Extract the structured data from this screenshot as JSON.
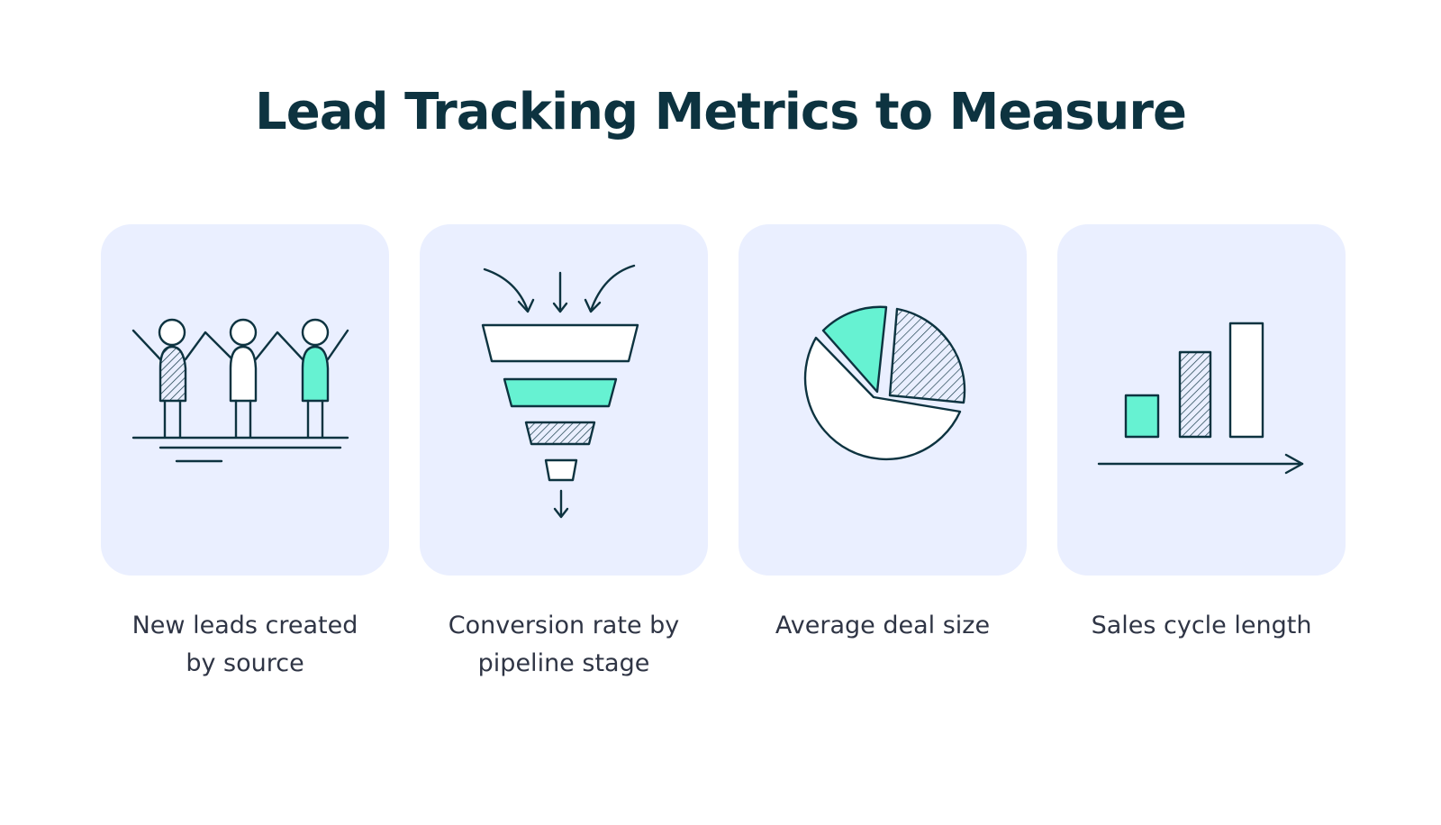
{
  "title": "Lead Tracking Metrics to Measure",
  "colors": {
    "card_background": "#eaefff",
    "accent_mint": "#66f2d2",
    "ink": "#0d3340",
    "caption_text": "#2f3545"
  },
  "metrics": [
    {
      "icon": "people-cheering-icon",
      "label": "New leads created\nby source"
    },
    {
      "icon": "sales-funnel-icon",
      "label": "Conversion rate by\npipeline stage"
    },
    {
      "icon": "pie-chart-icon",
      "label": "Average deal size"
    },
    {
      "icon": "bar-chart-growth-icon",
      "label": "Sales cycle length"
    }
  ]
}
